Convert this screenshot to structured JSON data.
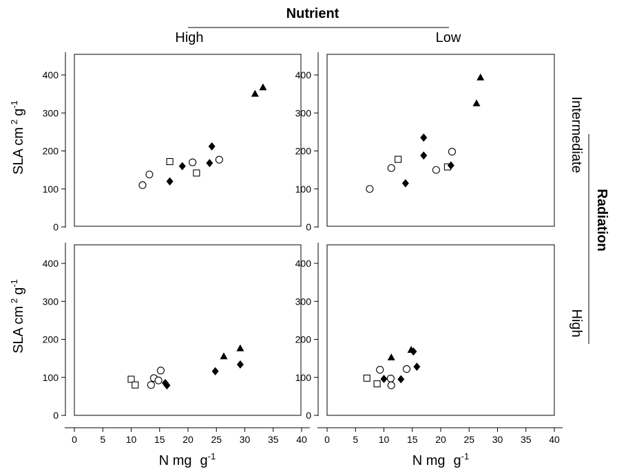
{
  "header": {
    "column_title": "Nutrient",
    "columns": [
      "High",
      "Low"
    ]
  },
  "side": {
    "row_title": "Radiation",
    "rows": [
      "Intermediate",
      "High"
    ]
  },
  "axes": {
    "ylabel_main": "SLA cm",
    "ylabel_sup1": "2",
    "ylabel_g": "g",
    "ylabel_sup2": "-1",
    "xlabel_main": "N mg",
    "xlabel_g": "g",
    "xlabel_sup": "-1",
    "x_ticks": [
      "0",
      "5",
      "10",
      "15",
      "20",
      "25",
      "30",
      "35",
      "40"
    ],
    "y_ticks": [
      "0",
      "100",
      "200",
      "300",
      "400"
    ]
  },
  "chart_data": [
    {
      "type": "scatter",
      "panel": "Radiation Intermediate / Nutrient High",
      "xlim": [
        0,
        40
      ],
      "ylim": [
        0,
        400
      ],
      "series": [
        {
          "marker": "circle-open",
          "points": [
            [
              12.0,
              110
            ],
            [
              13.2,
              138
            ],
            [
              20.8,
              170
            ],
            [
              25.5,
              177
            ]
          ]
        },
        {
          "marker": "square-open",
          "points": [
            [
              16.8,
              172
            ],
            [
              21.5,
              142
            ]
          ]
        },
        {
          "marker": "diamond-filled",
          "points": [
            [
              16.8,
              120
            ],
            [
              19.0,
              160
            ],
            [
              23.8,
              168
            ],
            [
              24.2,
              212
            ]
          ]
        },
        {
          "marker": "triangle-filled",
          "points": [
            [
              31.8,
              350
            ],
            [
              33.2,
              367
            ]
          ]
        }
      ]
    },
    {
      "type": "scatter",
      "panel": "Radiation Intermediate / Nutrient Low",
      "xlim": [
        0,
        40
      ],
      "ylim": [
        0,
        400
      ],
      "series": [
        {
          "marker": "circle-open",
          "points": [
            [
              7.5,
              100
            ],
            [
              11.3,
              155
            ],
            [
              19.2,
              150
            ],
            [
              22.0,
              198
            ]
          ]
        },
        {
          "marker": "square-open",
          "points": [
            [
              12.5,
              178
            ],
            [
              21.2,
              158
            ]
          ]
        },
        {
          "marker": "diamond-filled",
          "points": [
            [
              13.8,
              115
            ],
            [
              17.0,
              235
            ],
            [
              17.0,
              188
            ],
            [
              21.8,
              162
            ]
          ]
        },
        {
          "marker": "triangle-filled",
          "points": [
            [
              26.3,
              325
            ],
            [
              27.0,
              393
            ]
          ]
        }
      ]
    },
    {
      "type": "scatter",
      "panel": "Radiation High / Nutrient High",
      "xlim": [
        0,
        40
      ],
      "ylim": [
        0,
        400
      ],
      "series": [
        {
          "marker": "circle-open",
          "points": [
            [
              13.5,
              80
            ],
            [
              14.0,
              98
            ],
            [
              14.8,
              92
            ],
            [
              15.2,
              118
            ]
          ]
        },
        {
          "marker": "square-open",
          "points": [
            [
              10.0,
              95
            ],
            [
              10.7,
              80
            ]
          ]
        },
        {
          "marker": "diamond-filled",
          "points": [
            [
              16.0,
              85
            ],
            [
              16.3,
              79
            ],
            [
              24.8,
              116
            ],
            [
              29.2,
              134
            ]
          ]
        },
        {
          "marker": "triangle-filled",
          "points": [
            [
              26.3,
              155
            ],
            [
              29.2,
              176
            ]
          ]
        }
      ]
    },
    {
      "type": "scatter",
      "panel": "Radiation High / Nutrient Low",
      "xlim": [
        0,
        40
      ],
      "ylim": [
        0,
        400
      ],
      "series": [
        {
          "marker": "circle-open",
          "points": [
            [
              9.3,
              120
            ],
            [
              11.2,
              97
            ],
            [
              11.3,
              79
            ],
            [
              14.0,
              122
            ]
          ]
        },
        {
          "marker": "square-open",
          "points": [
            [
              7.0,
              98
            ],
            [
              8.8,
              83
            ]
          ]
        },
        {
          "marker": "diamond-filled",
          "points": [
            [
              10.0,
              96
            ],
            [
              13.0,
              95
            ],
            [
              15.2,
              168
            ],
            [
              15.8,
              128
            ]
          ]
        },
        {
          "marker": "triangle-filled",
          "points": [
            [
              11.3,
              152
            ],
            [
              14.8,
              172
            ]
          ]
        }
      ]
    }
  ]
}
